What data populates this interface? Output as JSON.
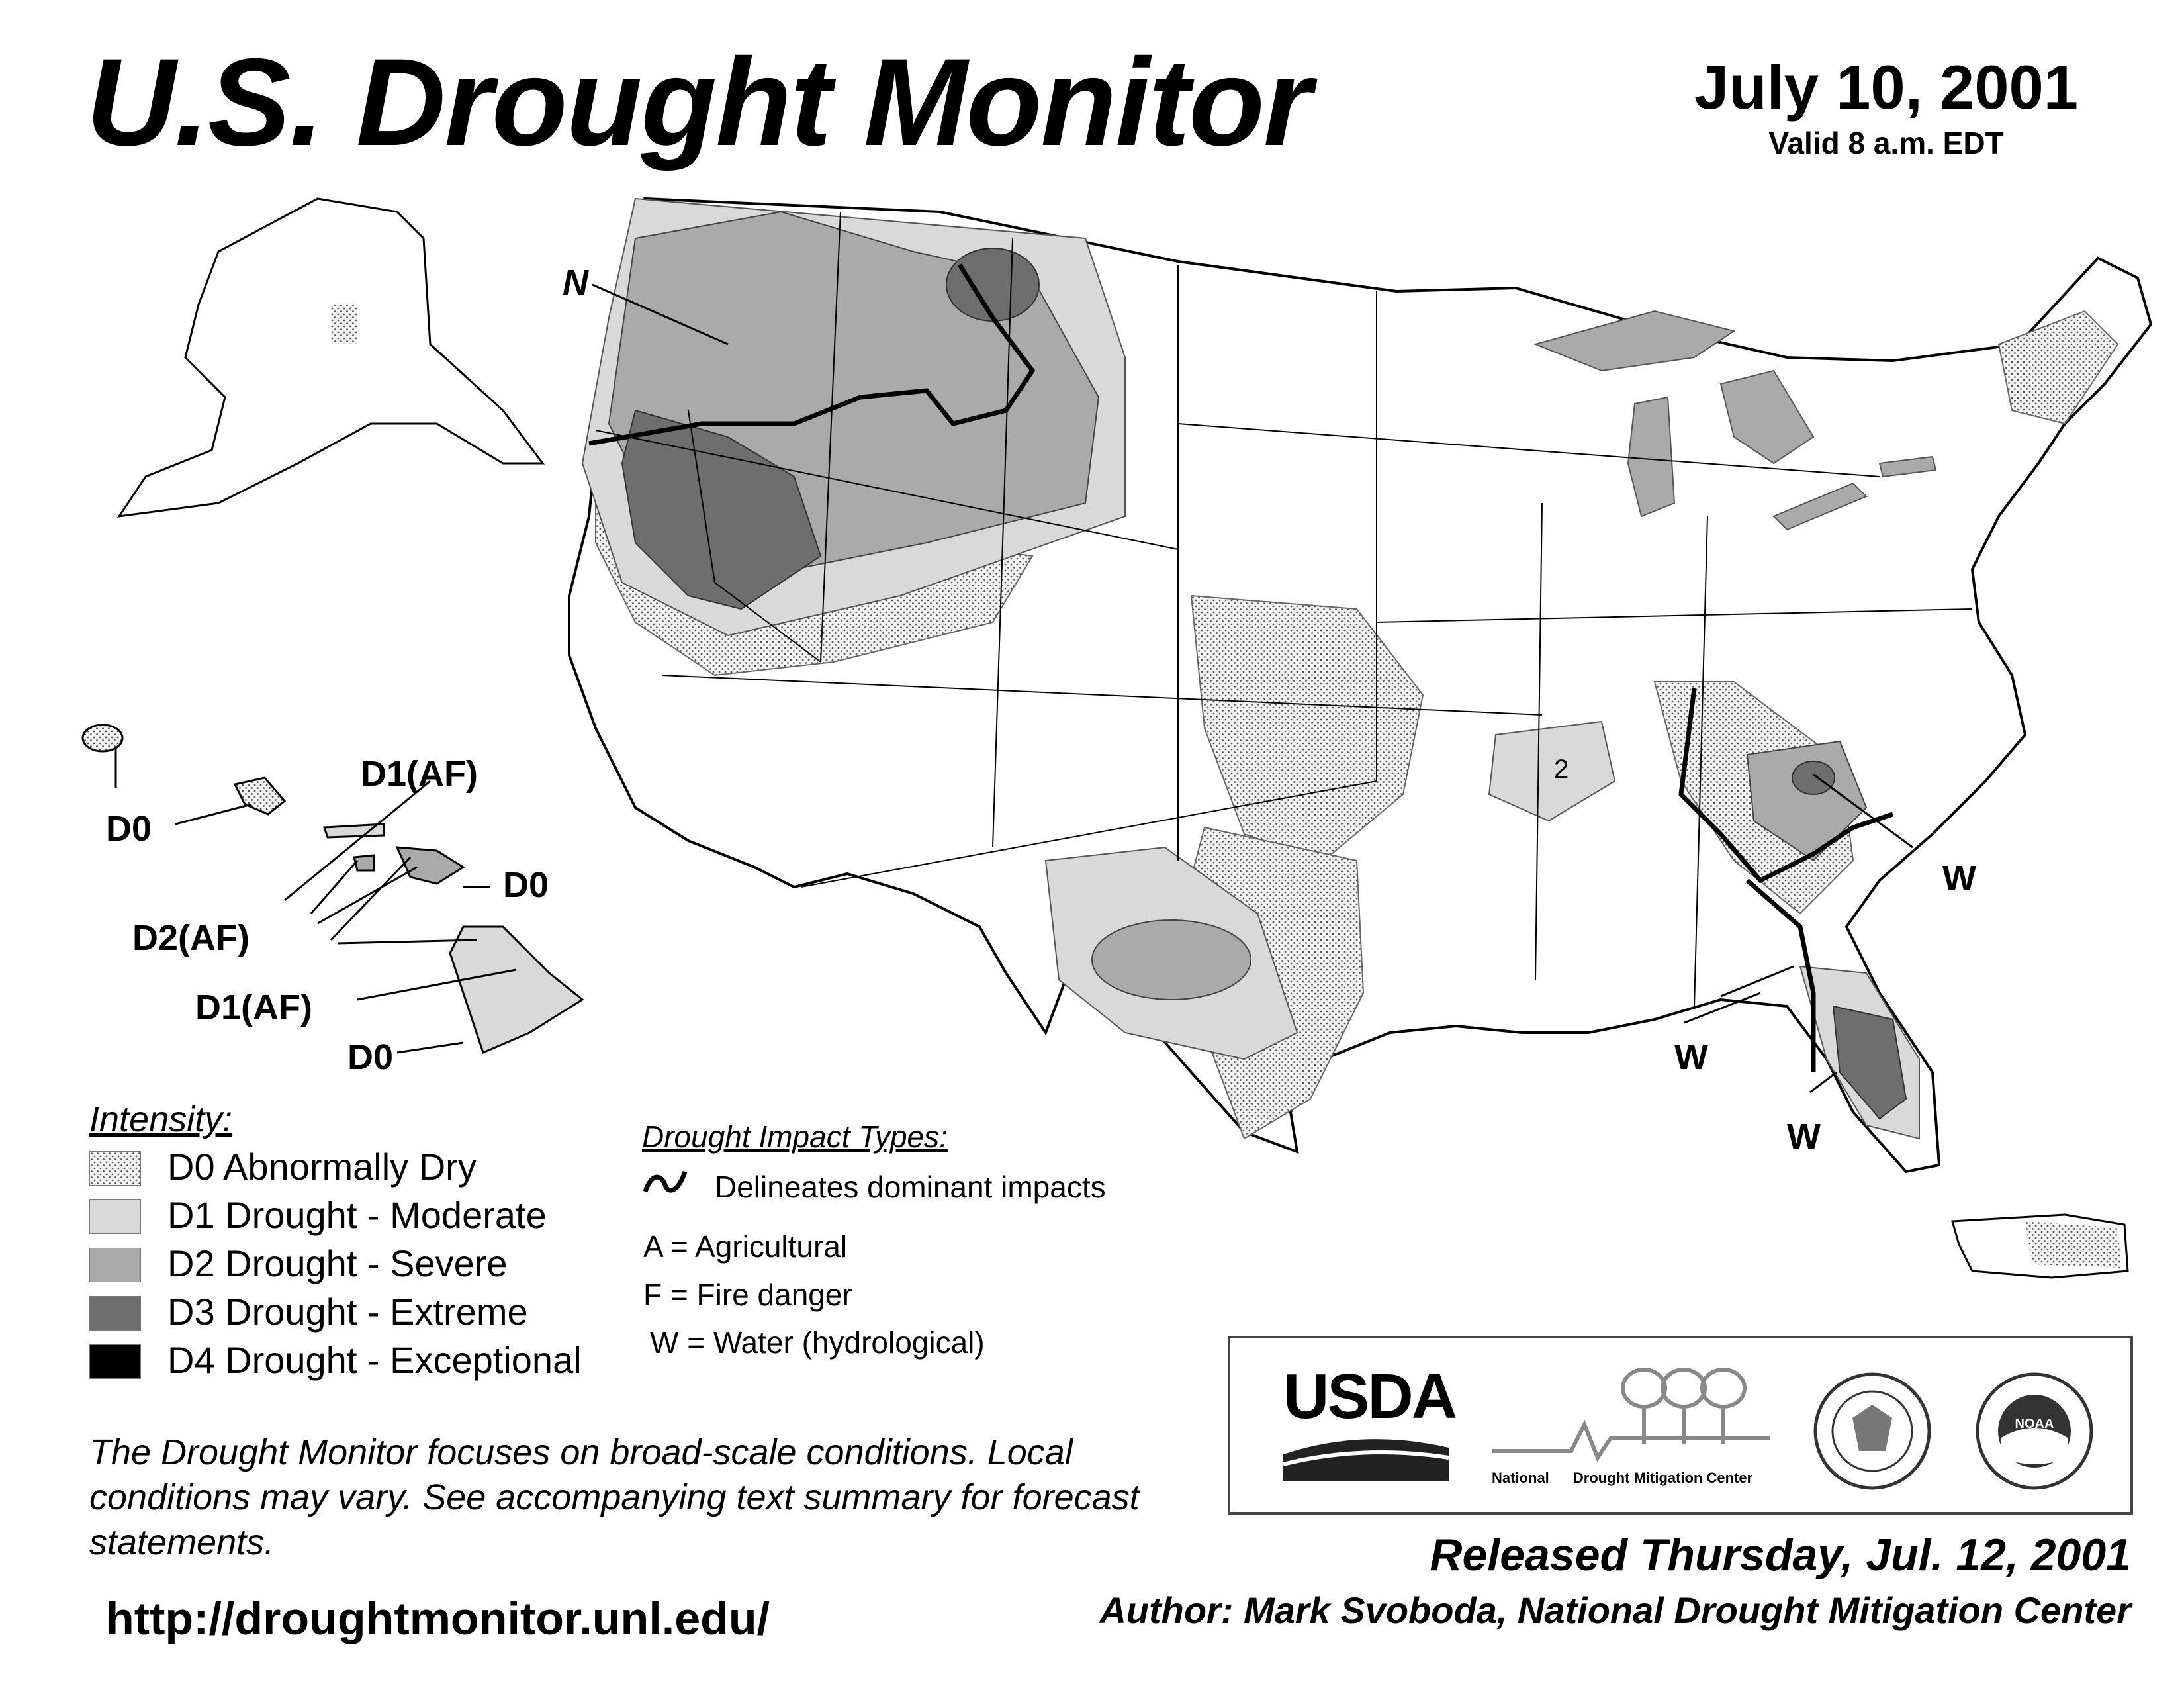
{
  "header": {
    "title": "U.S. Drought Monitor",
    "date": "July 10, 2001",
    "valid": "Valid 8 a.m. EDT"
  },
  "map_labels": {
    "n": "N",
    "hawaii": {
      "d0_left": "D0",
      "d1af_top": "D1(AF)",
      "d0_right": "D0",
      "d2af": "D2(AF)",
      "d1af_bottom": "D1(AF)",
      "d0_bottom": "D0"
    },
    "w_east": "W",
    "w_south": "W",
    "w_florida": "W",
    "arkansas_2": "2"
  },
  "legend": {
    "title": "Intensity:",
    "items": [
      {
        "label": "D0 Abnormally Dry",
        "color": "#ececec",
        "pattern": "dots"
      },
      {
        "label": "D1 Drought - Moderate",
        "color": "#d9d9d9",
        "pattern": "none"
      },
      {
        "label": "D2 Drought - Severe",
        "color": "#aaaaaa",
        "pattern": "none"
      },
      {
        "label": "D3 Drought - Extreme",
        "color": "#6e6e6e",
        "pattern": "none"
      },
      {
        "label": "D4 Drought - Exceptional",
        "color": "#000000",
        "pattern": "none"
      }
    ]
  },
  "impacts": {
    "title": "Drought Impact Types:",
    "line_label": "Delineates dominant impacts",
    "a": "A = Agricultural",
    "f": "F = Fire danger",
    "w": "W = Water (hydrological)"
  },
  "note": "The Drought Monitor focuses on broad-scale conditions. Local conditions may vary. See accompanying text summary for forecast statements.",
  "url": "http://droughtmonitor.unl.edu/",
  "released": "Released Thursday, Jul. 12, 2001",
  "author": "Author: Mark Svoboda, National Drought Mitigation Center",
  "logos": {
    "usda": "USDA",
    "ndmc_national": "National",
    "ndmc_center": "Drought Mitigation Center",
    "noaa": "NOAA"
  }
}
